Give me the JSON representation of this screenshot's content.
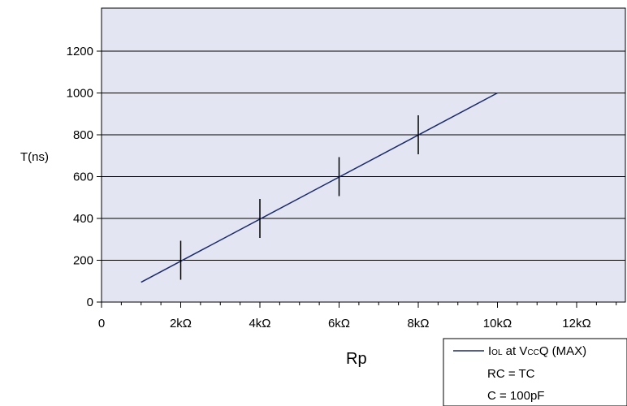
{
  "chart_data": {
    "type": "line",
    "title": "",
    "xlabel": "Rp",
    "ylabel": "T(ns)",
    "xlim": [
      0,
      13
    ],
    "ylim": [
      0,
      1400
    ],
    "x_ticks": [
      {
        "value": 0,
        "label": "0"
      },
      {
        "value": 2,
        "label": "2kΩ"
      },
      {
        "value": 4,
        "label": "4kΩ"
      },
      {
        "value": 6,
        "label": "6kΩ"
      },
      {
        "value": 8,
        "label": "8kΩ"
      },
      {
        "value": 10,
        "label": "10kΩ"
      },
      {
        "value": 12,
        "label": "12kΩ"
      }
    ],
    "y_ticks": [
      {
        "value": 0,
        "label": "0"
      },
      {
        "value": 200,
        "label": "200"
      },
      {
        "value": 400,
        "label": "400"
      },
      {
        "value": 600,
        "label": "600"
      },
      {
        "value": 800,
        "label": "800"
      },
      {
        "value": 1000,
        "label": "1000"
      },
      {
        "value": 1200,
        "label": "1200"
      }
    ],
    "grid": "horizontal",
    "line_color": "#1a2a6c",
    "plot_background": "#e3e5f2",
    "series": [
      {
        "x": [
          1,
          10
        ],
        "y": [
          95,
          1000
        ],
        "markers": [
          {
            "x": 2,
            "y": 200
          },
          {
            "x": 4,
            "y": 400
          },
          {
            "x": 6,
            "y": 600
          },
          {
            "x": 8,
            "y": 800
          }
        ]
      }
    ],
    "legend": {
      "placement": "bottom-right",
      "entries": [
        {
          "label": "IOL at VCCQ (MAX)",
          "parts": [
            {
              "t": "I",
              "sub": false
            },
            {
              "t": "OL",
              "sub": true
            },
            {
              "t": " at V",
              "sub": false
            },
            {
              "t": "CC",
              "sub": true
            },
            {
              "t": "Q (MAX)",
              "sub": false
            }
          ]
        }
      ],
      "notes": [
        "RC = TC",
        "C = 100pF"
      ]
    }
  }
}
